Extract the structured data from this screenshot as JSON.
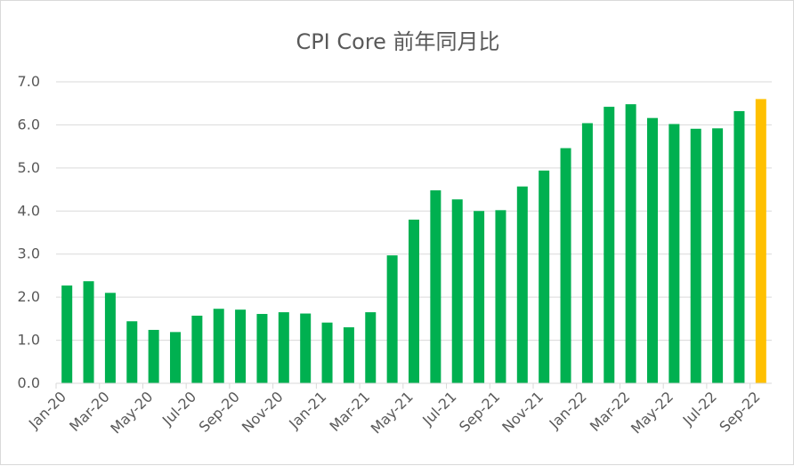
{
  "chart_data": {
    "type": "bar",
    "title": "CPI Core 前年同月比",
    "categories": [
      "Jan-20",
      "Feb-20",
      "Mar-20",
      "Apr-20",
      "May-20",
      "Jun-20",
      "Jul-20",
      "Aug-20",
      "Sep-20",
      "Oct-20",
      "Nov-20",
      "Dec-20",
      "Jan-21",
      "Feb-21",
      "Mar-21",
      "Apr-21",
      "May-21",
      "Jun-21",
      "Jul-21",
      "Aug-21",
      "Sep-21",
      "Oct-21",
      "Nov-21",
      "Dec-21",
      "Jan-22",
      "Feb-22",
      "Mar-22",
      "Apr-22",
      "May-22",
      "Jun-22",
      "Jul-22",
      "Aug-22",
      "Sep-22"
    ],
    "values": [
      2.27,
      2.37,
      2.1,
      1.44,
      1.24,
      1.19,
      1.57,
      1.73,
      1.71,
      1.61,
      1.65,
      1.62,
      1.41,
      1.3,
      1.65,
      2.97,
      3.8,
      4.48,
      4.27,
      4.0,
      4.02,
      4.57,
      4.94,
      5.46,
      6.04,
      6.42,
      6.48,
      6.16,
      6.02,
      5.91,
      5.92,
      6.32,
      6.6
    ],
    "colors": {
      "bar": "#00b050",
      "highlight": "#ffc000",
      "grid": "#d9d9d9",
      "axis_text": "#595959"
    },
    "highlight_index": 32,
    "ylim": [
      0,
      7
    ],
    "yticks": [
      "0.0",
      "1.0",
      "2.0",
      "3.0",
      "4.0",
      "5.0",
      "6.0",
      "7.0"
    ],
    "xtick_labels": [
      "Jan-20",
      "Mar-20",
      "May-20",
      "Jul-20",
      "Sep-20",
      "Nov-20",
      "Jan-21",
      "Mar-21",
      "May-21",
      "Jul-21",
      "Sep-21",
      "Nov-21",
      "Jan-22",
      "Mar-22",
      "May-22",
      "Jul-22",
      "Sep-22"
    ],
    "xlabel": "",
    "ylabel": "",
    "grid": true,
    "legend": "none"
  }
}
